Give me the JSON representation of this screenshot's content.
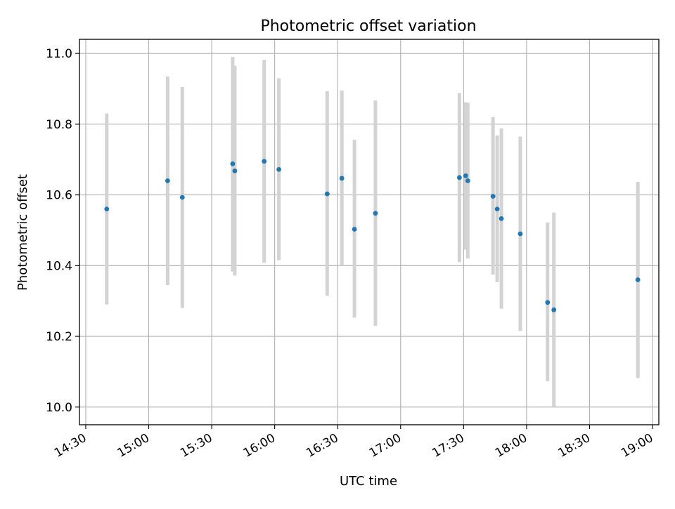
{
  "chart_data": {
    "type": "scatter",
    "title": "Photometric offset variation",
    "xlabel": "UTC time",
    "ylabel": "Photometric offset",
    "x_unit": "time of day (HH:MM)",
    "xlim": [
      "14:27",
      "19:03"
    ],
    "ylim": [
      9.95,
      11.04
    ],
    "xticks": [
      "14:30",
      "15:00",
      "15:30",
      "16:00",
      "16:30",
      "17:00",
      "17:30",
      "18:00",
      "18:30",
      "19:00"
    ],
    "yticks": [
      "10.0",
      "10.2",
      "10.4",
      "10.6",
      "10.8",
      "11.0"
    ],
    "grid": true,
    "point_color": "#1f77b4",
    "errorbar_color": "#d3d3d3",
    "points": [
      {
        "x": "14:40",
        "y": 10.56,
        "ylow": 10.29,
        "yhigh": 10.83
      },
      {
        "x": "15:09",
        "y": 10.64,
        "ylow": 10.345,
        "yhigh": 10.935
      },
      {
        "x": "15:16",
        "y": 10.593,
        "ylow": 10.28,
        "yhigh": 10.905
      },
      {
        "x": "15:40",
        "y": 10.688,
        "ylow": 10.383,
        "yhigh": 10.99
      },
      {
        "x": "15:41",
        "y": 10.668,
        "ylow": 10.372,
        "yhigh": 10.965
      },
      {
        "x": "15:55",
        "y": 10.695,
        "ylow": 10.408,
        "yhigh": 10.982
      },
      {
        "x": "16:02",
        "y": 10.672,
        "ylow": 10.415,
        "yhigh": 10.93
      },
      {
        "x": "16:25",
        "y": 10.603,
        "ylow": 10.315,
        "yhigh": 10.893
      },
      {
        "x": "16:32",
        "y": 10.647,
        "ylow": 10.4,
        "yhigh": 10.895
      },
      {
        "x": "16:38",
        "y": 10.503,
        "ylow": 10.253,
        "yhigh": 10.756
      },
      {
        "x": "16:48",
        "y": 10.548,
        "ylow": 10.23,
        "yhigh": 10.867
      },
      {
        "x": "17:28",
        "y": 10.649,
        "ylow": 10.41,
        "yhigh": 10.888
      },
      {
        "x": "17:31",
        "y": 10.654,
        "ylow": 10.445,
        "yhigh": 10.862
      },
      {
        "x": "17:32",
        "y": 10.64,
        "ylow": 10.42,
        "yhigh": 10.86
      },
      {
        "x": "17:44",
        "y": 10.596,
        "ylow": 10.375,
        "yhigh": 10.82
      },
      {
        "x": "17:46",
        "y": 10.56,
        "ylow": 10.353,
        "yhigh": 10.768
      },
      {
        "x": "17:48",
        "y": 10.533,
        "ylow": 10.278,
        "yhigh": 10.788
      },
      {
        "x": "17:57",
        "y": 10.49,
        "ylow": 10.215,
        "yhigh": 10.765
      },
      {
        "x": "18:10",
        "y": 10.296,
        "ylow": 10.073,
        "yhigh": 10.522
      },
      {
        "x": "18:13",
        "y": 10.275,
        "ylow": 10.0,
        "yhigh": 10.55
      },
      {
        "x": "18:53",
        "y": 10.36,
        "ylow": 10.082,
        "yhigh": 10.637
      }
    ]
  }
}
